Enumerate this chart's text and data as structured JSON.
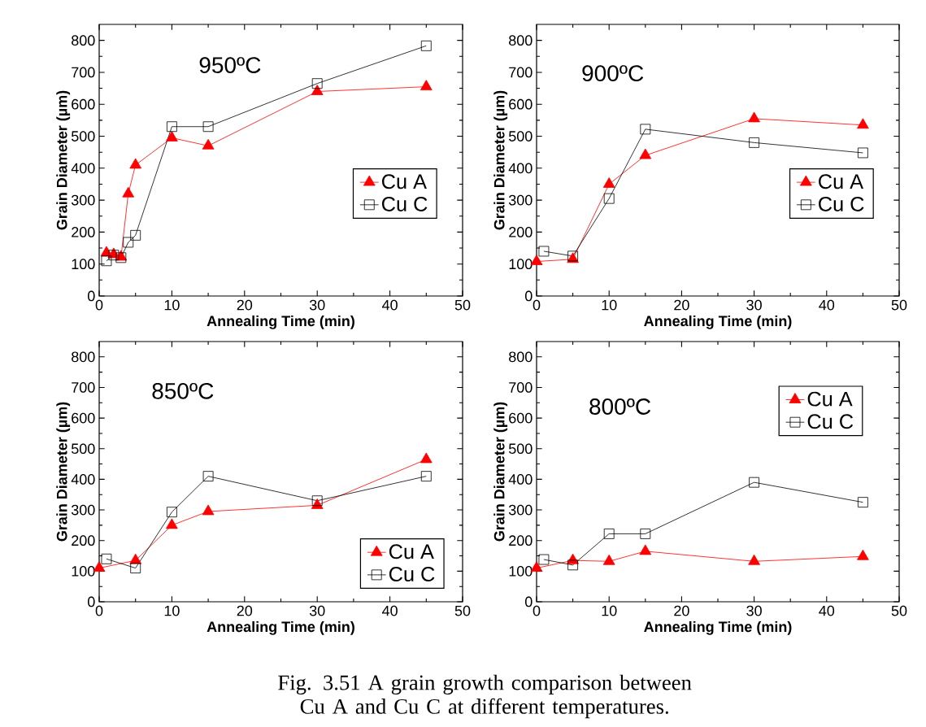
{
  "chart_data": [
    {
      "type": "line",
      "xlabel": "Annealing Time (min)",
      "ylabel": "Grain Diameter (µm)",
      "annotations": [
        "950ºC"
      ],
      "xlim": [
        0,
        50
      ],
      "xticks": [
        0,
        10,
        20,
        30,
        40,
        50
      ],
      "ylim": [
        0,
        850
      ],
      "yticks": [
        0,
        100,
        200,
        300,
        400,
        500,
        600,
        700,
        800
      ],
      "legend": "right",
      "line_style": "solid",
      "series": [
        {
          "name": "Cu A",
          "color": "#ff0000",
          "marker": "triangle",
          "x": [
            1,
            2,
            3,
            4,
            5,
            10,
            15,
            30,
            45
          ],
          "values": [
            135,
            130,
            122,
            320,
            410,
            495,
            470,
            640,
            655
          ]
        },
        {
          "name": "Cu C",
          "color": "#000000",
          "marker": "square",
          "x": [
            1,
            2,
            3,
            4,
            5,
            10,
            15,
            30,
            45
          ],
          "values": [
            110,
            128,
            120,
            168,
            190,
            530,
            530,
            665,
            783
          ]
        }
      ]
    },
    {
      "type": "line",
      "xlabel": "Annealing Time (min)",
      "ylabel": "Grain Diameter (µm)",
      "annotations": [
        "900ºC"
      ],
      "xlim": [
        0,
        50
      ],
      "xticks": [
        0,
        10,
        20,
        30,
        40,
        50
      ],
      "ylim": [
        0,
        850
      ],
      "yticks": [
        0,
        100,
        200,
        300,
        400,
        500,
        600,
        700,
        800
      ],
      "legend": "right",
      "line_style": "solid",
      "series": [
        {
          "name": "Cu A",
          "color": "#ff0000",
          "marker": "triangle",
          "x": [
            0,
            5,
            10,
            15,
            30,
            45
          ],
          "values": [
            108,
            115,
            350,
            440,
            555,
            535
          ]
        },
        {
          "name": "Cu C",
          "color": "#000000",
          "marker": "square",
          "x": [
            1,
            5,
            10,
            15,
            30,
            45
          ],
          "values": [
            140,
            125,
            305,
            522,
            480,
            448
          ]
        }
      ]
    },
    {
      "type": "line",
      "xlabel": "Annealing Time (min)",
      "ylabel": "Grain Diameter (µm)",
      "annotations": [
        "850ºC"
      ],
      "xlim": [
        0,
        50
      ],
      "xticks": [
        0,
        10,
        20,
        30,
        40,
        50
      ],
      "ylim": [
        0,
        850
      ],
      "yticks": [
        0,
        100,
        200,
        300,
        400,
        500,
        600,
        700,
        800
      ],
      "legend": "bottom right",
      "line_style": "solid",
      "series": [
        {
          "name": "Cu A",
          "color": "#ff0000",
          "marker": "triangle",
          "x": [
            0,
            5,
            10,
            15,
            30,
            45
          ],
          "values": [
            110,
            135,
            250,
            295,
            315,
            465
          ]
        },
        {
          "name": "Cu C",
          "color": "#000000",
          "marker": "square",
          "x": [
            1,
            5,
            10,
            15,
            30,
            45
          ],
          "values": [
            140,
            110,
            293,
            410,
            330,
            410
          ]
        }
      ]
    },
    {
      "type": "line",
      "xlabel": "Annealing Time (min)",
      "ylabel": "Grain Diameter (µm)",
      "annotations": [
        "800ºC",
        "Fig. 3.51 A grain growth comparison between Cu A and Cu C at different temperatures."
      ],
      "xlim": [
        0,
        50
      ],
      "xticks": [
        0,
        10,
        20,
        30,
        40,
        50
      ],
      "ylim": [
        0,
        850
      ],
      "yticks": [
        0,
        100,
        200,
        300,
        400,
        500,
        600,
        700,
        800
      ],
      "legend": "top right",
      "line_style": "solid",
      "series": [
        {
          "name": "Cu A",
          "color": "#ff0000",
          "marker": "triangle",
          "x": [
            0,
            5,
            10,
            15,
            30,
            45
          ],
          "values": [
            110,
            135,
            132,
            165,
            132,
            148
          ]
        },
        {
          "name": "Cu C",
          "color": "#000000",
          "marker": "square",
          "x": [
            1,
            5,
            10,
            15,
            30,
            45
          ],
          "values": [
            138,
            120,
            222,
            222,
            390,
            325
          ]
        }
      ]
    }
  ]
}
